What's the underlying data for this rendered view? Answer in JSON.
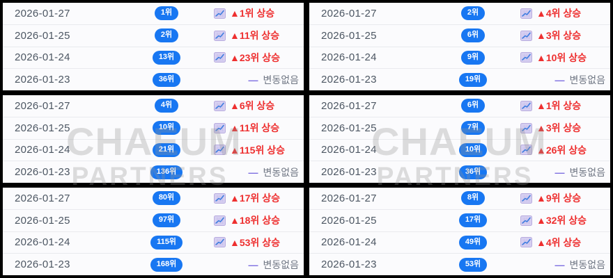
{
  "watermark": {
    "line1": "CHAEUM",
    "line2": "PARTNERS"
  },
  "colors": {
    "rank_badge_blue": "#1877f2",
    "rank_up_red": "#ee2f2f",
    "no_change_dash_purple": "#7d6ee0",
    "no_change_text_gray": "#6f7683",
    "date_text_gray": "#4c5662",
    "panel_background": "#fbfbfd",
    "page_background": "#000000"
  },
  "icons": {
    "chart_up": "chart-increasing-icon",
    "no_change_dash": "—"
  },
  "panels": [
    {
      "rows": [
        {
          "date": "2026-01-27",
          "rank": "1위",
          "type": "up",
          "change": "▲1위 상승"
        },
        {
          "date": "2026-01-25",
          "rank": "2위",
          "type": "up",
          "change": "▲11위 상승"
        },
        {
          "date": "2026-01-24",
          "rank": "13위",
          "type": "up",
          "change": "▲23위 상승"
        },
        {
          "date": "2026-01-23",
          "rank": "36위",
          "type": "none",
          "change": "변동없음"
        }
      ]
    },
    {
      "rows": [
        {
          "date": "2026-01-27",
          "rank": "2위",
          "type": "up",
          "change": "▲4위 상승"
        },
        {
          "date": "2026-01-25",
          "rank": "6위",
          "type": "up",
          "change": "▲3위 상승"
        },
        {
          "date": "2026-01-24",
          "rank": "9위",
          "type": "up",
          "change": "▲10위 상승"
        },
        {
          "date": "2026-01-23",
          "rank": "19위",
          "type": "none",
          "change": "변동없음"
        }
      ]
    },
    {
      "rows": [
        {
          "date": "2026-01-27",
          "rank": "4위",
          "type": "up",
          "change": "▲6위 상승"
        },
        {
          "date": "2026-01-25",
          "rank": "10위",
          "type": "up",
          "change": "▲11위 상승"
        },
        {
          "date": "2026-01-24",
          "rank": "21위",
          "type": "up",
          "change": "▲115위 상승"
        },
        {
          "date": "2026-01-23",
          "rank": "136위",
          "type": "none",
          "change": "변동없음"
        }
      ]
    },
    {
      "rows": [
        {
          "date": "2026-01-27",
          "rank": "6위",
          "type": "up",
          "change": "▲1위 상승"
        },
        {
          "date": "2026-01-25",
          "rank": "7위",
          "type": "up",
          "change": "▲3위 상승"
        },
        {
          "date": "2026-01-24",
          "rank": "10위",
          "type": "up",
          "change": "▲26위 상승"
        },
        {
          "date": "2026-01-23",
          "rank": "36위",
          "type": "none",
          "change": "변동없음"
        }
      ]
    },
    {
      "rows": [
        {
          "date": "2026-01-27",
          "rank": "80위",
          "type": "up",
          "change": "▲17위 상승"
        },
        {
          "date": "2026-01-25",
          "rank": "97위",
          "type": "up",
          "change": "▲18위 상승"
        },
        {
          "date": "2026-01-24",
          "rank": "115위",
          "type": "up",
          "change": "▲53위 상승"
        },
        {
          "date": "2026-01-23",
          "rank": "168위",
          "type": "none",
          "change": "변동없음"
        }
      ]
    },
    {
      "rows": [
        {
          "date": "2026-01-27",
          "rank": "8위",
          "type": "up",
          "change": "▲9위 상승"
        },
        {
          "date": "2026-01-25",
          "rank": "17위",
          "type": "up",
          "change": "▲32위 상승"
        },
        {
          "date": "2026-01-24",
          "rank": "49위",
          "type": "up",
          "change": "▲4위 상승"
        },
        {
          "date": "2026-01-23",
          "rank": "53위",
          "type": "none",
          "change": "변동없음"
        }
      ]
    }
  ]
}
